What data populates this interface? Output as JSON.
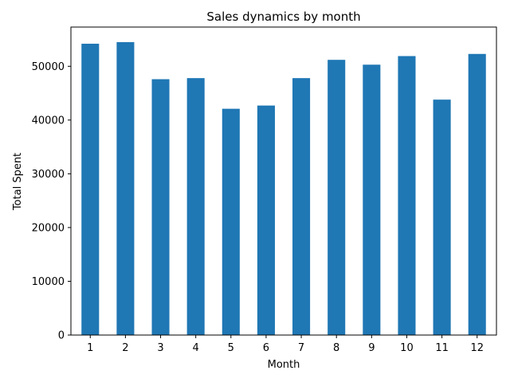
{
  "chart_data": {
    "type": "bar",
    "title": "Sales dynamics by month",
    "xlabel": "Month",
    "ylabel": "Total Spent",
    "categories": [
      "1",
      "2",
      "3",
      "4",
      "5",
      "6",
      "7",
      "8",
      "9",
      "10",
      "11",
      "12"
    ],
    "values": [
      54200,
      54500,
      47600,
      47800,
      42100,
      42700,
      47800,
      51200,
      50300,
      51900,
      43800,
      52300
    ],
    "ylim": [
      0,
      57300
    ],
    "yticks": [
      "0",
      "10000",
      "20000",
      "30000",
      "40000",
      "50000"
    ],
    "bar_color": "#1f77b4",
    "grid": false,
    "legend": "none"
  }
}
